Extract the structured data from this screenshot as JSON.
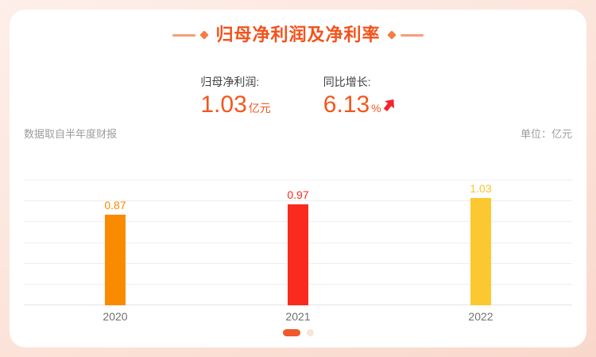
{
  "header": {
    "title": "归母净利润及净利率"
  },
  "stats": [
    {
      "label": "归母净利润:",
      "value": "1.03",
      "unit": "亿元"
    },
    {
      "label": "同比增长:",
      "value": "6.13",
      "unit": "%",
      "trend": "up"
    }
  ],
  "meta": {
    "source_note": "数据取自半年度财报",
    "unit_label": "单位：亿元"
  },
  "chart_data": {
    "type": "bar",
    "title": "归母净利润及净利率",
    "categories": [
      "2020",
      "2021",
      "2022"
    ],
    "values": [
      0.87,
      0.97,
      1.03
    ],
    "data_labels": [
      "0.87",
      "0.97",
      "1.03"
    ],
    "bar_colors": [
      "#f98b00",
      "#fa2a1f",
      "#fbc832"
    ],
    "label_colors": [
      "#f98b00",
      "#fa2a1f",
      "#fbc22e"
    ],
    "xlabel": "",
    "ylabel": "",
    "unit": "亿元",
    "ylim": [
      0,
      1.2
    ],
    "grid_divisions": 6,
    "grid": true,
    "legend": false
  },
  "carousel": {
    "active_index": 0,
    "dot_count": 2
  },
  "colors": {
    "accent": "#f4521b",
    "value_text": "#f4571c",
    "trend_arrow": "#f5232d",
    "dot_active": "#ee5a2b",
    "dot_inactive": "#fbe3d6",
    "background": "#fce3d9",
    "gridline": "#eeeef3"
  }
}
